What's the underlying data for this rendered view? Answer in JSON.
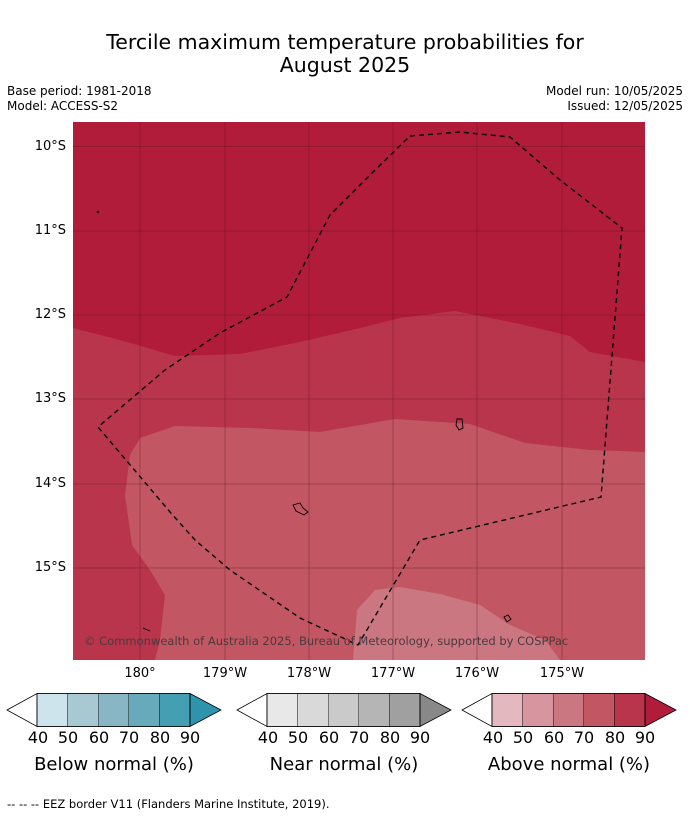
{
  "title_line1": "Tercile maximum temperature probabilities for",
  "title_line2": "August 2025",
  "base_period": "Base period: 1981-2018",
  "model": "Model: ACCESS-S2",
  "model_run": "Model run: 10/05/2025",
  "issued": "Issued: 12/05/2025",
  "lat_labels": [
    "10°S",
    "11°S",
    "12°S",
    "13°S",
    "14°S",
    "15°S"
  ],
  "lon_labels": [
    "180°",
    "179°W",
    "178°W",
    "177°W",
    "176°W",
    "175°W"
  ],
  "credit": "© Commonwealth of Australia 2025, Bureau of Meteorology, supported by COSPPac",
  "colorbars": [
    {
      "title": "Below normal (%)",
      "ticks": [
        "40",
        "50",
        "60",
        "70",
        "80",
        "90"
      ],
      "colors": [
        "#ffffff",
        "#cde4ec",
        "#a8c8d2",
        "#88b6c4",
        "#67abbb",
        "#449fb2",
        "#2f93ac"
      ]
    },
    {
      "title": "Near normal (%)",
      "ticks": [
        "40",
        "50",
        "60",
        "70",
        "80",
        "90"
      ],
      "colors": [
        "#ffffff",
        "#e8e8e8",
        "#d9d9d9",
        "#cacaca",
        "#b5b5b5",
        "#a0a0a0",
        "#888888"
      ]
    },
    {
      "title": "Above normal (%)",
      "ticks": [
        "40",
        "50",
        "60",
        "70",
        "80",
        "90"
      ],
      "colors": [
        "#ffffff",
        "#e4b8bf",
        "#d7959f",
        "#cb7781",
        "#c25763",
        "#b9354b",
        "#b01c3a"
      ]
    }
  ],
  "map_colors": {
    "above_90": "#b01c3a",
    "above_80": "#b9354b",
    "above_70": "#c25763",
    "above_60": "#cb7781"
  },
  "footer": "--  --  -- EEZ border V11 (Flanders Marine Institute, 2019)."
}
